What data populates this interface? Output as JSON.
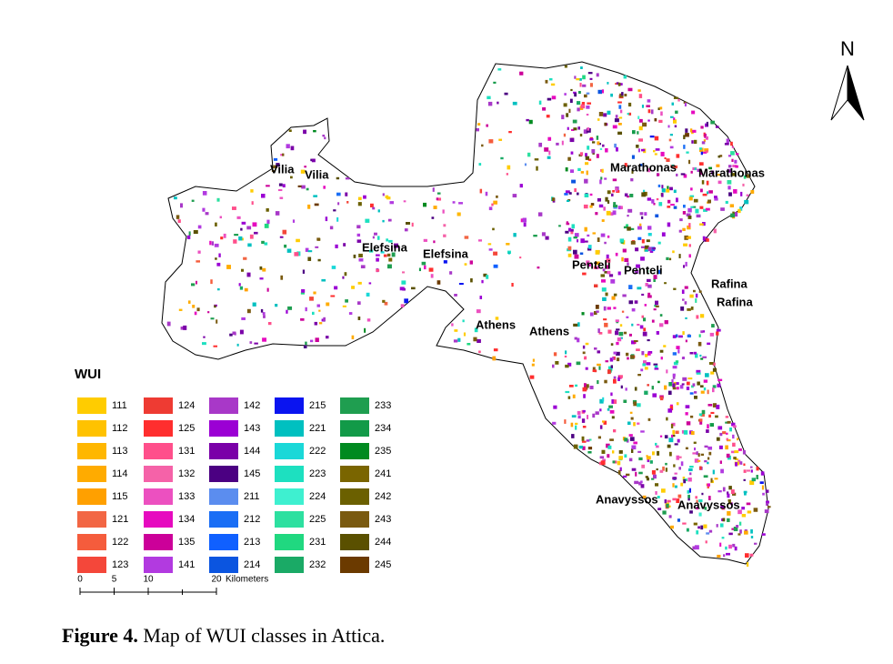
{
  "north_label": "N",
  "places": [
    "Vilia",
    "Marathonas",
    "Elefsina",
    "Penteli",
    "Rafina",
    "Athens",
    "Anavyssos"
  ],
  "legend": {
    "title": "WUI",
    "classes": [
      {
        "code": "111",
        "color": "#ffcc00"
      },
      {
        "code": "112",
        "color": "#ffc200"
      },
      {
        "code": "113",
        "color": "#ffb700"
      },
      {
        "code": "114",
        "color": "#ffab00"
      },
      {
        "code": "115",
        "color": "#ffa000"
      },
      {
        "code": "121",
        "color": "#f26644"
      },
      {
        "code": "122",
        "color": "#f55c3c"
      },
      {
        "code": "123",
        "color": "#f4473a"
      },
      {
        "code": "124",
        "color": "#ee3b33"
      },
      {
        "code": "125",
        "color": "#ff2e2e"
      },
      {
        "code": "131",
        "color": "#ff4f8b"
      },
      {
        "code": "132",
        "color": "#f562a8"
      },
      {
        "code": "133",
        "color": "#ec50c0"
      },
      {
        "code": "134",
        "color": "#e60abf"
      },
      {
        "code": "135",
        "color": "#cc0099"
      },
      {
        "code": "141",
        "color": "#b23ae0"
      },
      {
        "code": "142",
        "color": "#a838c8"
      },
      {
        "code": "143",
        "color": "#9b00d4"
      },
      {
        "code": "144",
        "color": "#7a00a8"
      },
      {
        "code": "145",
        "color": "#4b0082"
      },
      {
        "code": "211",
        "color": "#5b8def"
      },
      {
        "code": "212",
        "color": "#1a6ef5"
      },
      {
        "code": "213",
        "color": "#1060ff"
      },
      {
        "code": "214",
        "color": "#0b55e0"
      },
      {
        "code": "215",
        "color": "#0a14f0"
      },
      {
        "code": "221",
        "color": "#00c0c0"
      },
      {
        "code": "222",
        "color": "#1ad8d8"
      },
      {
        "code": "223",
        "color": "#1de0c0"
      },
      {
        "code": "224",
        "color": "#3ef0d0"
      },
      {
        "code": "225",
        "color": "#2de0a0"
      },
      {
        "code": "231",
        "color": "#20d880"
      },
      {
        "code": "232",
        "color": "#1aaa66"
      },
      {
        "code": "233",
        "color": "#1f9e50"
      },
      {
        "code": "234",
        "color": "#129a48"
      },
      {
        "code": "235",
        "color": "#008a20"
      },
      {
        "code": "241",
        "color": "#7a6500"
      },
      {
        "code": "242",
        "color": "#6b6000"
      },
      {
        "code": "243",
        "color": "#7a5a10"
      },
      {
        "code": "244",
        "color": "#5a5000"
      },
      {
        "code": "245",
        "color": "#6b3a00"
      }
    ]
  },
  "scale_bar": {
    "ticks": [
      0,
      5,
      10,
      20
    ],
    "unit": "Kilometers"
  },
  "caption": {
    "label": "Figure 4.",
    "text": "Map of WUI classes in Attica."
  }
}
